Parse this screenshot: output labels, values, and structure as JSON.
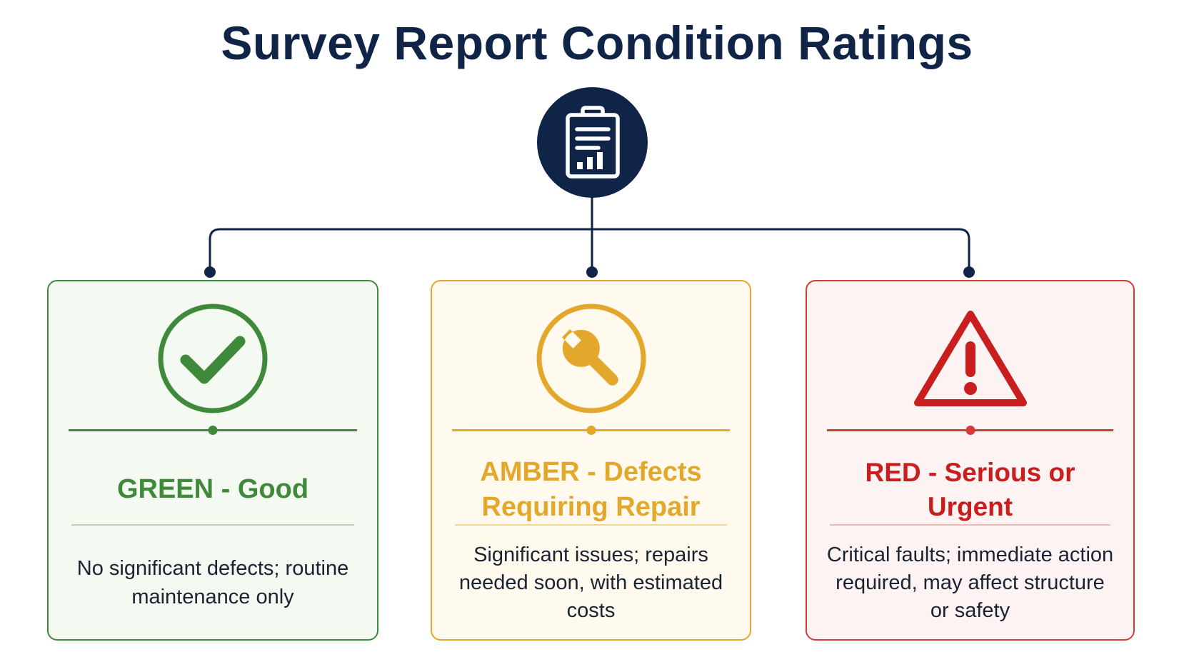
{
  "title": "Survey Report Condition Ratings",
  "root_icon": "clipboard-report-icon",
  "colors": {
    "navy": "#102447",
    "green": "#3f8a3a",
    "amber": "#e3a72b",
    "red": "#c81e1e"
  },
  "ratings": [
    {
      "heading": "GREEN - Good",
      "description": "No significant defects; routine maintenance only",
      "icon": "checkmark-circle-icon"
    },
    {
      "heading": "AMBER - Defects Requiring Repair",
      "description": "Significant issues; repairs needed soon, with estimated costs",
      "icon": "wrench-circle-icon"
    },
    {
      "heading": "RED - Serious or Urgent",
      "description": "Critical faults; immediate action required, may affect structure or safety",
      "icon": "warning-triangle-icon"
    }
  ]
}
